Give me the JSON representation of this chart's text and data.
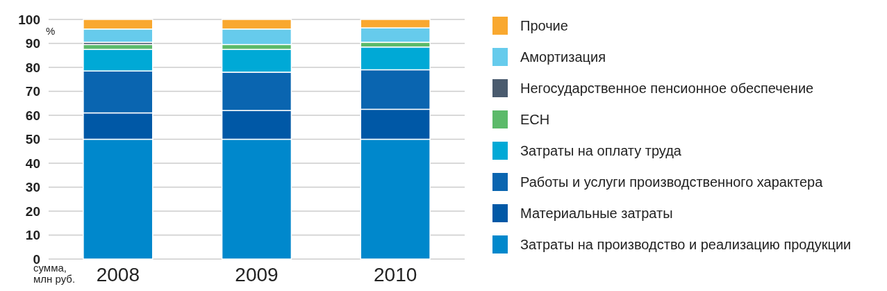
{
  "chart_data": {
    "type": "bar",
    "stacked": true,
    "categories": [
      "2008",
      "2009",
      "2010"
    ],
    "ylabel": "%",
    "annotations": [
      "сумма, млн руб."
    ],
    "ylim": [
      0,
      100
    ],
    "yticks": [
      0,
      10,
      20,
      30,
      40,
      50,
      60,
      70,
      80,
      90,
      100
    ],
    "grid": "y",
    "legend": "right",
    "series": [
      {
        "name": "Затраты на производство и реализацию продукции",
        "color": "#0088cc",
        "values": [
          50,
          50,
          50
        ]
      },
      {
        "name": "Материальные затраты",
        "color": "#0058a6",
        "values": [
          11,
          12,
          12.5
        ]
      },
      {
        "name": "Работы и услуги производственного характера",
        "color": "#0a65b0",
        "values": [
          17.5,
          16,
          16.5
        ]
      },
      {
        "name": "Затраты на оплату труда",
        "color": "#00a9d6",
        "values": [
          9,
          9.5,
          9.5
        ]
      },
      {
        "name": "ЕСН",
        "color": "#5cba6a",
        "values": [
          2,
          2,
          2
        ]
      },
      {
        "name": "Негосударственное пенсионное обеспечение",
        "color": "#4a5b6e",
        "values": [
          1,
          0,
          0
        ]
      },
      {
        "name": "Амортизация",
        "color": "#66cbec",
        "values": [
          5.5,
          6.5,
          6
        ]
      },
      {
        "name": "Прочие",
        "color": "#f9a82f",
        "values": [
          4,
          4,
          3.5
        ]
      }
    ]
  }
}
